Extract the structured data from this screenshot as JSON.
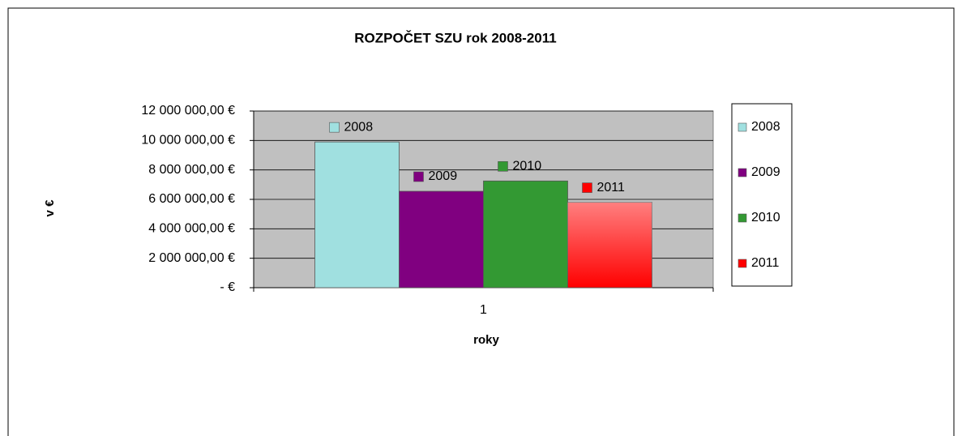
{
  "chart_data": {
    "type": "bar",
    "title": "ROZPOČET SZU rok 2008-2011",
    "x_label": "roky",
    "y_label": "v €",
    "categories": [
      "1"
    ],
    "series": [
      {
        "name": "2008",
        "color": "#a0e0e0",
        "values": [
          9900000
        ]
      },
      {
        "name": "2009",
        "color": "#800080",
        "values": [
          6550000
        ]
      },
      {
        "name": "2010",
        "color": "#339933",
        "values": [
          7250000
        ]
      },
      {
        "name": "2011",
        "color": "#ff0000",
        "gradient": true,
        "values": [
          5800000
        ]
      }
    ],
    "ylim": [
      0,
      12000000
    ],
    "yticks": [
      {
        "value": 0,
        "label": "-     €"
      },
      {
        "value": 2000000,
        "label": "2 000 000,00 €"
      },
      {
        "value": 4000000,
        "label": "4 000 000,00 €"
      },
      {
        "value": 6000000,
        "label": "6 000 000,00 €"
      },
      {
        "value": 8000000,
        "label": "8 000 000,00 €"
      },
      {
        "value": 10000000,
        "label": "10 000 000,00 €"
      },
      {
        "value": 12000000,
        "label": "12 000 000,00 €"
      }
    ],
    "grid": true,
    "legend": "right",
    "plot_background": "#c0c0c0"
  }
}
